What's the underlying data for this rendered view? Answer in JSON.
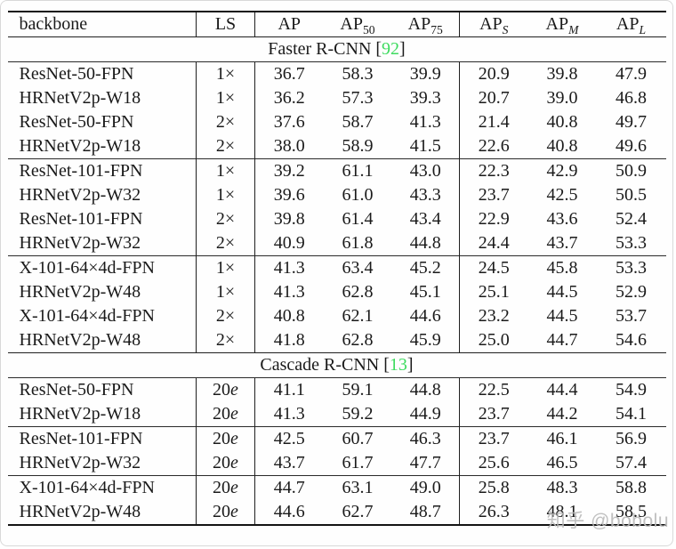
{
  "watermark": {
    "text": "知乎 @bobolu"
  },
  "colors": {
    "citation_green": "#3edb5f",
    "rule_dark": "#141414",
    "text": "#1a1a1a"
  },
  "table": {
    "headers": [
      {
        "key": "backbone",
        "label": "backbone",
        "sub": "",
        "italic_sub": false
      },
      {
        "key": "ls",
        "label": "LS",
        "sub": "",
        "italic_sub": false
      },
      {
        "key": "ap",
        "label": "AP",
        "sub": "",
        "italic_sub": false
      },
      {
        "key": "ap50",
        "label": "AP",
        "sub": "50",
        "italic_sub": false
      },
      {
        "key": "ap75",
        "label": "AP",
        "sub": "75",
        "italic_sub": false
      },
      {
        "key": "aps",
        "label": "AP",
        "sub": "S",
        "italic_sub": true
      },
      {
        "key": "apm",
        "label": "AP",
        "sub": "M",
        "italic_sub": true
      },
      {
        "key": "apl",
        "label": "AP",
        "sub": "L",
        "italic_sub": true
      }
    ],
    "sections": [
      {
        "title": "Faster R-CNN",
        "citation": "92",
        "groups": [
          {
            "rows": [
              {
                "backbone": "ResNet-50-FPN",
                "ls": "1×",
                "values": [
                  "36.7",
                  "58.3",
                  "39.9",
                  "20.9",
                  "39.8",
                  "47.9"
                ]
              },
              {
                "backbone": "HRNetV2p-W18",
                "ls": "1×",
                "values": [
                  "36.2",
                  "57.3",
                  "39.3",
                  "20.7",
                  "39.0",
                  "46.8"
                ]
              },
              {
                "backbone": "ResNet-50-FPN",
                "ls": "2×",
                "values": [
                  "37.6",
                  "58.7",
                  "41.3",
                  "21.4",
                  "40.8",
                  "49.7"
                ]
              },
              {
                "backbone": "HRNetV2p-W18",
                "ls": "2×",
                "values": [
                  "38.0",
                  "58.9",
                  "41.5",
                  "22.6",
                  "40.8",
                  "49.6"
                ]
              }
            ]
          },
          {
            "rows": [
              {
                "backbone": "ResNet-101-FPN",
                "ls": "1×",
                "values": [
                  "39.2",
                  "61.1",
                  "43.0",
                  "22.3",
                  "42.9",
                  "50.9"
                ]
              },
              {
                "backbone": "HRNetV2p-W32",
                "ls": "1×",
                "values": [
                  "39.6",
                  "61.0",
                  "43.3",
                  "23.7",
                  "42.5",
                  "50.5"
                ]
              },
              {
                "backbone": "ResNet-101-FPN",
                "ls": "2×",
                "values": [
                  "39.8",
                  "61.4",
                  "43.4",
                  "22.9",
                  "43.6",
                  "52.4"
                ]
              },
              {
                "backbone": "HRNetV2p-W32",
                "ls": "2×",
                "values": [
                  "40.9",
                  "61.8",
                  "44.8",
                  "24.4",
                  "43.7",
                  "53.3"
                ]
              }
            ]
          },
          {
            "rows": [
              {
                "backbone": "X-101-64×4d-FPN",
                "ls": "1×",
                "values": [
                  "41.3",
                  "63.4",
                  "45.2",
                  "24.5",
                  "45.8",
                  "53.3"
                ]
              },
              {
                "backbone": "HRNetV2p-W48",
                "ls": "1×",
                "values": [
                  "41.3",
                  "62.8",
                  "45.1",
                  "25.1",
                  "44.5",
                  "52.9"
                ]
              },
              {
                "backbone": "X-101-64×4d-FPN",
                "ls": "2×",
                "values": [
                  "40.8",
                  "62.1",
                  "44.6",
                  "23.2",
                  "44.5",
                  "53.7"
                ]
              },
              {
                "backbone": "HRNetV2p-W48",
                "ls": "2×",
                "values": [
                  "41.8",
                  "62.8",
                  "45.9",
                  "25.0",
                  "44.7",
                  "54.6"
                ]
              }
            ]
          }
        ]
      },
      {
        "title": "Cascade R-CNN",
        "citation": "13",
        "groups": [
          {
            "rows": [
              {
                "backbone": "ResNet-50-FPN",
                "ls": "20e",
                "values": [
                  "41.1",
                  "59.1",
                  "44.8",
                  "22.5",
                  "44.4",
                  "54.9"
                ]
              },
              {
                "backbone": "HRNetV2p-W18",
                "ls": "20e",
                "values": [
                  "41.3",
                  "59.2",
                  "44.9",
                  "23.7",
                  "44.2",
                  "54.1"
                ]
              }
            ]
          },
          {
            "rows": [
              {
                "backbone": "ResNet-101-FPN",
                "ls": "20e",
                "values": [
                  "42.5",
                  "60.7",
                  "46.3",
                  "23.7",
                  "46.1",
                  "56.9"
                ]
              },
              {
                "backbone": "HRNetV2p-W32",
                "ls": "20e",
                "values": [
                  "43.7",
                  "61.7",
                  "47.7",
                  "25.6",
                  "46.5",
                  "57.4"
                ]
              }
            ]
          },
          {
            "rows": [
              {
                "backbone": "X-101-64×4d-FPN",
                "ls": "20e",
                "values": [
                  "44.7",
                  "63.1",
                  "49.0",
                  "25.8",
                  "48.3",
                  "58.8"
                ]
              },
              {
                "backbone": "HRNetV2p-W48",
                "ls": "20e",
                "values": [
                  "44.6",
                  "62.7",
                  "48.7",
                  "26.3",
                  "48.1",
                  "58.5"
                ]
              }
            ]
          }
        ]
      }
    ]
  }
}
